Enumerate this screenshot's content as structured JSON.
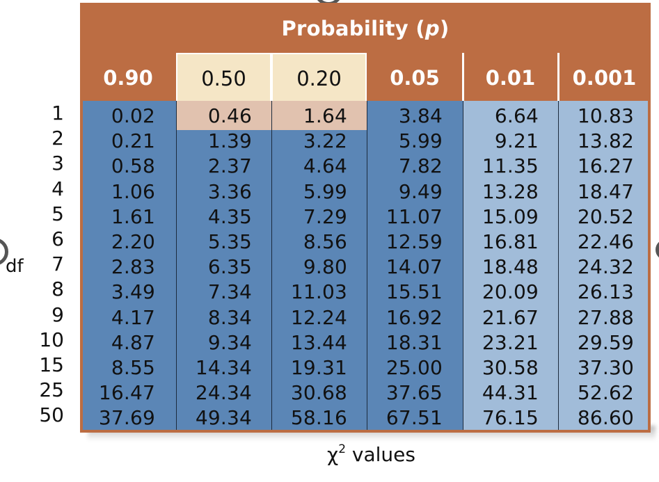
{
  "table": {
    "title_text": "Probability (",
    "title_symbol": "p",
    "title_close": ")",
    "columns": [
      "0.90",
      "0.50",
      "0.20",
      "0.05",
      "0.01",
      "0.001"
    ],
    "df_axis_label": "df",
    "x_axis_label_symbol": "χ",
    "x_axis_label_superscript": "2",
    "x_axis_label_text": " values",
    "df_values": [
      "1",
      "2",
      "3",
      "4",
      "5",
      "6",
      "7",
      "8",
      "9",
      "10",
      "15",
      "25",
      "50"
    ],
    "rows": [
      [
        "0.02",
        "0.46",
        "1.64",
        "3.84",
        "6.64",
        "10.83"
      ],
      [
        "0.21",
        "1.39",
        "3.22",
        "5.99",
        "9.21",
        "13.82"
      ],
      [
        "0.58",
        "2.37",
        "4.64",
        "7.82",
        "11.35",
        "16.27"
      ],
      [
        "1.06",
        "3.36",
        "5.99",
        "9.49",
        "13.28",
        "18.47"
      ],
      [
        "1.61",
        "4.35",
        "7.29",
        "11.07",
        "15.09",
        "20.52"
      ],
      [
        "2.20",
        "5.35",
        "8.56",
        "12.59",
        "16.81",
        "22.46"
      ],
      [
        "2.83",
        "6.35",
        "9.80",
        "14.07",
        "18.48",
        "24.32"
      ],
      [
        "3.49",
        "7.34",
        "11.03",
        "15.51",
        "20.09",
        "26.13"
      ],
      [
        "4.17",
        "8.34",
        "12.24",
        "16.92",
        "21.67",
        "27.88"
      ],
      [
        "4.87",
        "9.34",
        "13.44",
        "18.31",
        "23.21",
        "29.59"
      ],
      [
        "8.55",
        "14.34",
        "19.31",
        "25.00",
        "30.58",
        "37.30"
      ],
      [
        "16.47",
        "24.34",
        "30.68",
        "37.65",
        "44.31",
        "52.62"
      ],
      [
        "37.69",
        "49.34",
        "58.16",
        "67.51",
        "76.15",
        "86.60"
      ]
    ],
    "highlighted_cells": [
      {
        "row": 0,
        "col": 1
      },
      {
        "row": 0,
        "col": 2
      }
    ]
  },
  "colors": {
    "frame_orange": "#bc6d43",
    "header_cream": "#f5e6c6",
    "highlight_pink": "#e1c2af",
    "dark_blue": "#5b86b6",
    "light_blue": "#a1bcd9"
  },
  "chart_data": {
    "type": "table",
    "title": "Probability (p)",
    "row_header_label": "df",
    "footer_label": "χ2 values",
    "columns": [
      "0.90",
      "0.50",
      "0.20",
      "0.05",
      "0.01",
      "0.001"
    ],
    "row_labels": [
      "1",
      "2",
      "3",
      "4",
      "5",
      "6",
      "7",
      "8",
      "9",
      "10",
      "15",
      "25",
      "50"
    ],
    "values": [
      [
        0.02,
        0.46,
        1.64,
        3.84,
        6.64,
        10.83
      ],
      [
        0.21,
        1.39,
        3.22,
        5.99,
        9.21,
        13.82
      ],
      [
        0.58,
        2.37,
        4.64,
        7.82,
        11.35,
        16.27
      ],
      [
        1.06,
        3.36,
        5.99,
        9.49,
        13.28,
        18.47
      ],
      [
        1.61,
        4.35,
        7.29,
        11.07,
        15.09,
        20.52
      ],
      [
        2.2,
        5.35,
        8.56,
        12.59,
        16.81,
        22.46
      ],
      [
        2.83,
        6.35,
        9.8,
        14.07,
        18.48,
        24.32
      ],
      [
        3.49,
        7.34,
        11.03,
        15.51,
        20.09,
        26.13
      ],
      [
        4.17,
        8.34,
        12.24,
        16.92,
        21.67,
        27.88
      ],
      [
        4.87,
        9.34,
        13.44,
        18.31,
        23.21,
        29.59
      ],
      [
        8.55,
        14.34,
        19.31,
        25.0,
        30.58,
        37.3
      ],
      [
        16.47,
        24.34,
        30.68,
        37.65,
        44.31,
        52.62
      ],
      [
        37.69,
        49.34,
        58.16,
        67.51,
        76.15,
        86.6
      ]
    ]
  }
}
